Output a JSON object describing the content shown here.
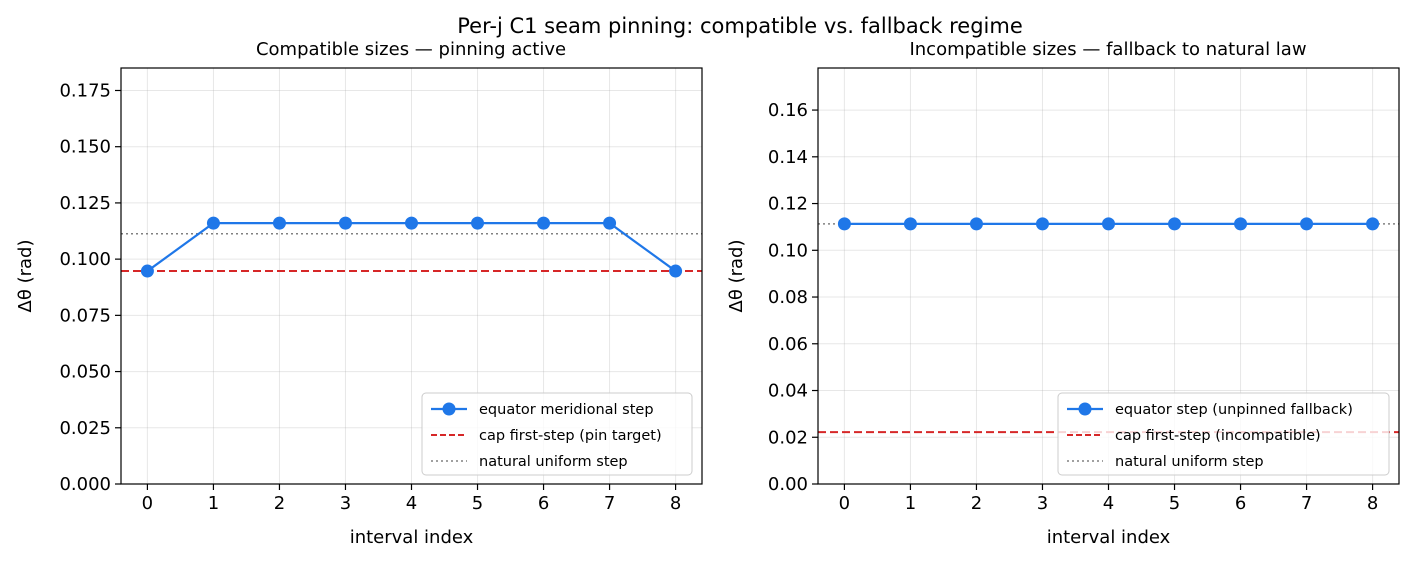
{
  "figure": {
    "suptitle": "Per-j C1 seam pinning: compatible vs. fallback regime"
  },
  "chart_data": [
    {
      "type": "line",
      "title": "Compatible sizes — pinning active",
      "xlabel": "interval index",
      "ylabel": "Δθ (rad)",
      "xlim": [
        -0.4,
        8.4
      ],
      "ylim": [
        0,
        0.185
      ],
      "xticks": [
        0,
        1,
        2,
        3,
        4,
        5,
        6,
        7,
        8
      ],
      "yticks": [
        0.0,
        0.025,
        0.05,
        0.075,
        0.1,
        0.125,
        0.15,
        0.175
      ],
      "ytick_labels": [
        "0.000",
        "0.025",
        "0.050",
        "0.075",
        "0.100",
        "0.125",
        "0.150",
        "0.175"
      ],
      "grid": true,
      "legend_position": "lower right",
      "series": [
        {
          "name": "equator meridional step",
          "style": "solid-marker",
          "color": "#1f77e8",
          "x": [
            0,
            1,
            2,
            3,
            4,
            5,
            6,
            7,
            8
          ],
          "y": [
            0.0947,
            0.116,
            0.116,
            0.116,
            0.116,
            0.116,
            0.116,
            0.116,
            0.0947
          ]
        }
      ],
      "reference_lines": [
        {
          "name": "cap first-step (pin target)",
          "style": "dashed",
          "color": "#d62728",
          "y": 0.0947
        },
        {
          "name": "natural uniform step",
          "style": "dotted",
          "color": "#808080",
          "y": 0.1113
        }
      ]
    },
    {
      "type": "line",
      "title": "Incompatible sizes — fallback to natural law",
      "xlabel": "interval index",
      "ylabel": "Δθ (rad)",
      "xlim": [
        -0.4,
        8.4
      ],
      "ylim": [
        0,
        0.178
      ],
      "xticks": [
        0,
        1,
        2,
        3,
        4,
        5,
        6,
        7,
        8
      ],
      "yticks": [
        0.0,
        0.02,
        0.04,
        0.06,
        0.08,
        0.1,
        0.12,
        0.14,
        0.16
      ],
      "ytick_labels": [
        "0.00",
        "0.02",
        "0.04",
        "0.06",
        "0.08",
        "0.10",
        "0.12",
        "0.14",
        "0.16"
      ],
      "grid": true,
      "legend_position": "lower right",
      "series": [
        {
          "name": "equator step (unpinned fallback)",
          "style": "solid-marker",
          "color": "#1f77e8",
          "x": [
            0,
            1,
            2,
            3,
            4,
            5,
            6,
            7,
            8
          ],
          "y": [
            0.1113,
            0.1113,
            0.1113,
            0.1113,
            0.1113,
            0.1113,
            0.1113,
            0.1113,
            0.1113
          ]
        }
      ],
      "reference_lines": [
        {
          "name": "cap first-step (incompatible)",
          "style": "dashed",
          "color": "#d62728",
          "y": 0.0222
        },
        {
          "name": "natural uniform step",
          "style": "dotted",
          "color": "#808080",
          "y": 0.1113
        }
      ]
    }
  ]
}
